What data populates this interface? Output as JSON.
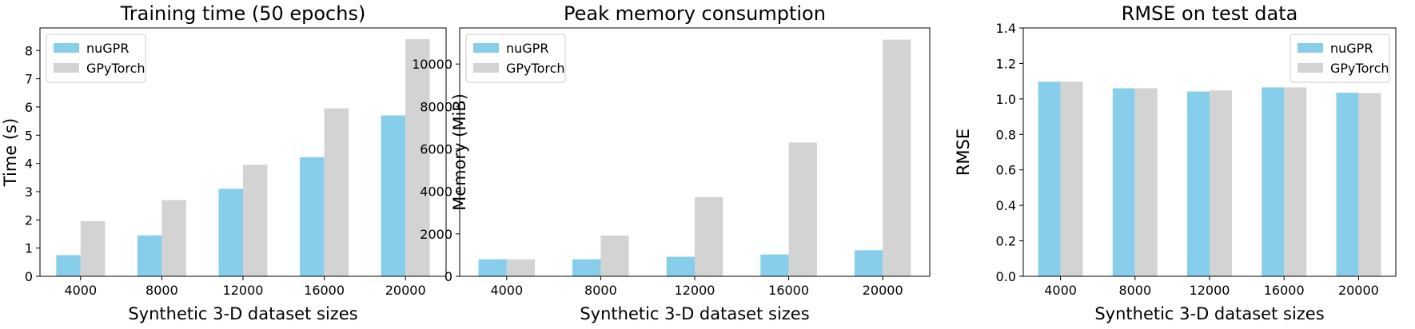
{
  "colors": {
    "nuGPR": "#87CEEB",
    "GPyTorch": "#D3D3D3"
  },
  "chart_data": [
    {
      "type": "bar",
      "title": "Training time (50 epochs)",
      "xlabel": "Synthetic 3-D dataset sizes",
      "ylabel": "Time (s)",
      "categories": [
        "4000",
        "8000",
        "12000",
        "16000",
        "20000"
      ],
      "series": [
        {
          "name": "nuGPR",
          "values": [
            0.75,
            1.45,
            3.1,
            4.22,
            5.7
          ]
        },
        {
          "name": "GPyTorch",
          "values": [
            1.95,
            2.7,
            3.95,
            5.95,
            8.4
          ]
        }
      ],
      "ylim": [
        0,
        8.8
      ],
      "yticks": [
        0,
        1,
        2,
        3,
        4,
        5,
        6,
        7,
        8
      ],
      "legend": "top-left",
      "grid": false
    },
    {
      "type": "bar",
      "title": "Peak memory consumption",
      "xlabel": "Synthetic 3-D dataset sizes",
      "ylabel": "Memory (MiB)",
      "categories": [
        "4000",
        "8000",
        "12000",
        "16000",
        "20000"
      ],
      "series": [
        {
          "name": "nuGPR",
          "values": [
            800,
            800,
            920,
            1030,
            1230
          ]
        },
        {
          "name": "GPyTorch",
          "values": [
            800,
            1920,
            3730,
            6300,
            11150
          ]
        }
      ],
      "ylim": [
        0,
        11700
      ],
      "yticks": [
        0,
        2000,
        4000,
        6000,
        8000,
        10000
      ],
      "legend": "top-left",
      "grid": false
    },
    {
      "type": "bar",
      "title": "RMSE on test data",
      "xlabel": "Synthetic 3-D dataset sizes",
      "ylabel": "RMSE",
      "categories": [
        "4000",
        "8000",
        "12000",
        "16000",
        "20000"
      ],
      "series": [
        {
          "name": "nuGPR",
          "values": [
            1.097,
            1.06,
            1.042,
            1.065,
            1.035
          ]
        },
        {
          "name": "GPyTorch",
          "values": [
            1.097,
            1.06,
            1.048,
            1.065,
            1.033
          ]
        }
      ],
      "ylim": [
        0,
        1.4
      ],
      "yticks": [
        "0.0",
        "0.2",
        "0.4",
        "0.6",
        "0.8",
        "1.0",
        "1.2",
        "1.4"
      ],
      "legend": "top-right",
      "grid": false
    }
  ]
}
